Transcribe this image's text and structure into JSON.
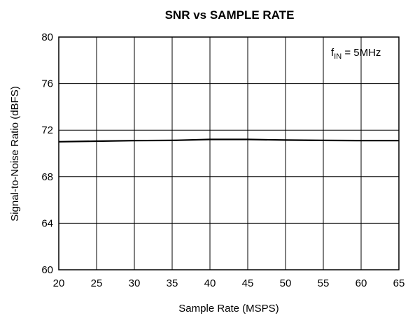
{
  "chart_data": {
    "type": "line",
    "title": "SNR vs SAMPLE RATE",
    "xlabel": "Sample Rate (MSPS)",
    "ylabel": "Signal-to-Noise Ratio (dBFS)",
    "xlim": [
      20,
      65
    ],
    "ylim": [
      60,
      80
    ],
    "xticks": [
      20,
      25,
      30,
      35,
      40,
      45,
      50,
      55,
      60,
      65
    ],
    "yticks": [
      60,
      64,
      68,
      72,
      76,
      80
    ],
    "grid": true,
    "annotation": {
      "main": "f",
      "sub": "IN",
      "rest": " = 5MHz"
    },
    "series": [
      {
        "x": [
          20,
          25,
          30,
          35,
          40,
          45,
          50,
          55,
          60,
          65
        ],
        "y": [
          71.0,
          71.05,
          71.1,
          71.12,
          71.2,
          71.2,
          71.15,
          71.12,
          71.1,
          71.1
        ]
      }
    ]
  }
}
